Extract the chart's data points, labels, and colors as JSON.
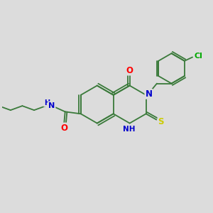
{
  "background_color": "#dcdcdc",
  "bond_color": "#3a7a3a",
  "atom_colors": {
    "O": "#ff0000",
    "N": "#0000cc",
    "S": "#cccc00",
    "Cl": "#00aa00",
    "C": "#3a7a3a",
    "H": "#0000cc"
  },
  "figsize": [
    3.0,
    3.0
  ],
  "dpi": 100
}
